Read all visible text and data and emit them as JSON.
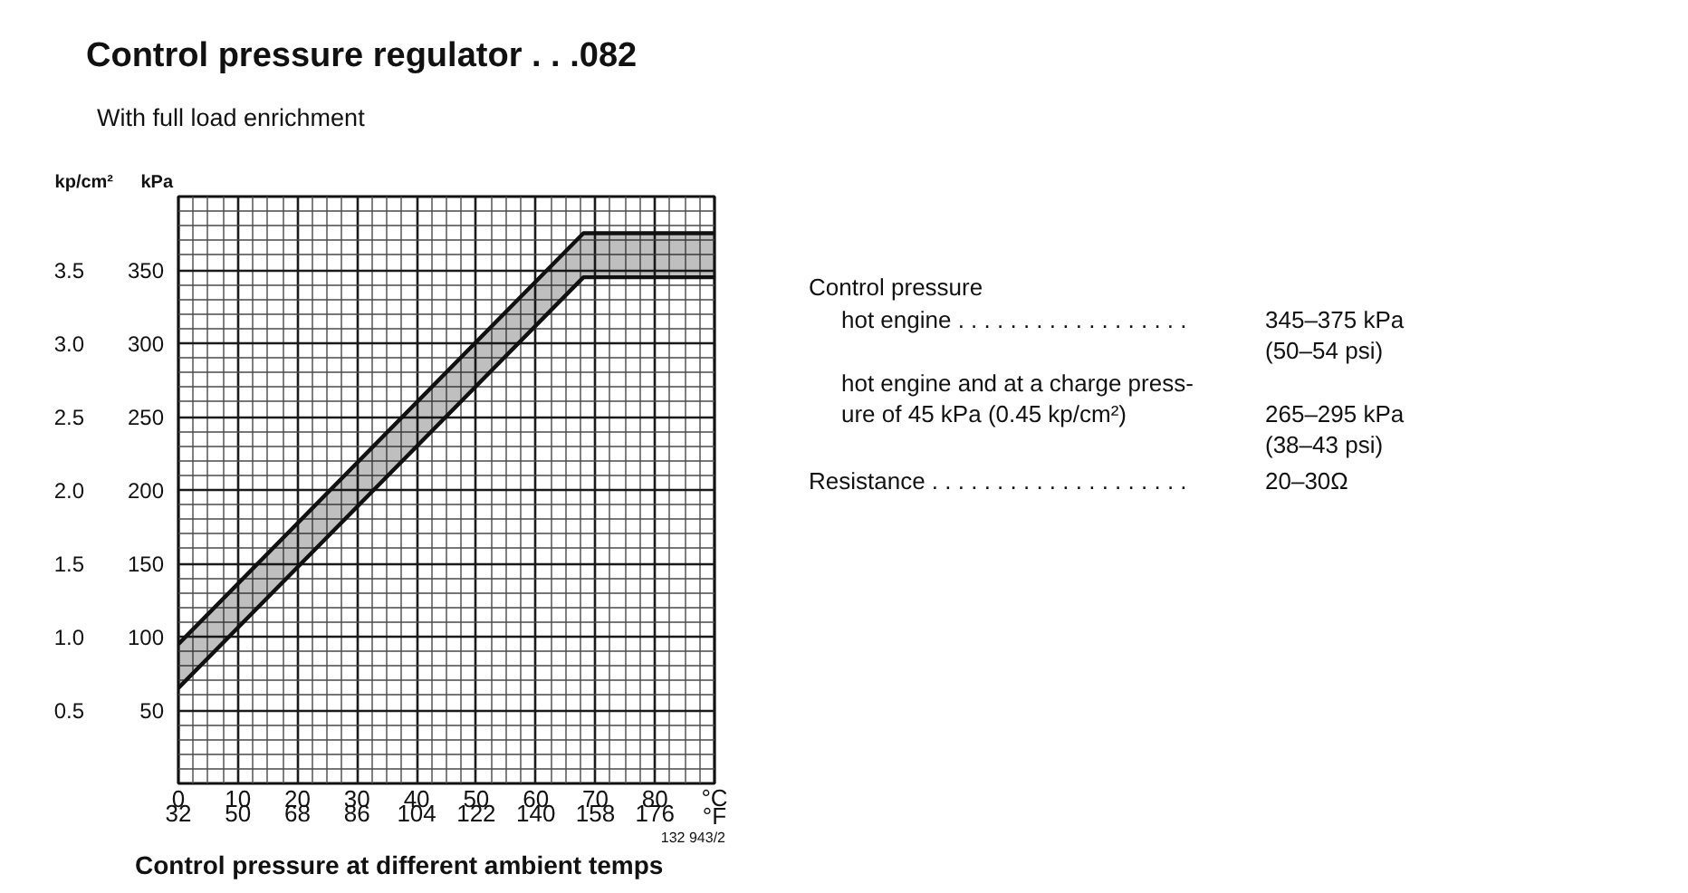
{
  "chart_data": [
    {
      "type": "line",
      "title": "Control pressure regulator . . .082",
      "subtitle": "With full load enrichment",
      "xlabel": "°C",
      "x2label": "°F",
      "ylabel": "kPa",
      "y2label": "kp/cm²",
      "xlim": [
        0,
        90
      ],
      "xticks": [
        0,
        10,
        20,
        30,
        40,
        50,
        60,
        70,
        80
      ],
      "x2lim": [
        32,
        194
      ],
      "x2ticks": [
        32,
        50,
        68,
        86,
        104,
        122,
        140,
        158,
        176
      ],
      "ylim": [
        0,
        400
      ],
      "yticks": [
        50,
        100,
        150,
        200,
        250,
        300,
        350
      ],
      "y2lim": [
        0,
        4
      ],
      "y2ticks": [
        0.5,
        {
          "value": 1,
          "label": "1.0"
        },
        1.5,
        {
          "value": 2,
          "label": "2.0"
        },
        2.5,
        {
          "value": 3,
          "label": "3.0"
        },
        3.5
      ],
      "grid": true,
      "series": [
        {
          "type": "line",
          "color": "#111111",
          "x": [
            0,
            68,
            90
          ],
          "values": [
            95,
            375,
            375
          ]
        },
        {
          "type": "line",
          "color": "#111111",
          "x": [
            0,
            68,
            90
          ],
          "values": [
            65,
            345,
            345
          ],
          "lower": [
            65,
            345,
            345
          ],
          "upper": [
            95,
            375,
            375
          ]
        }
      ],
      "annotations": [
        "Control pressure at different ambient temps",
        "132 943/2"
      ]
    },
    {
      "type": "other",
      "annotations": [
        "Control pressure",
        "hot engine . . . . . . . . . . . . . . . . . .",
        "345–375 kPa",
        "(50–54 psi)",
        "hot engine and at a charge press-",
        "ure of 45 kPa (0.45 kp/cm²)",
        "265–295 kPa",
        "(38–43 psi)",
        "Resistance . . . . . . . . . . . . . . . . . . . .",
        "20–30Ω"
      ]
    }
  ]
}
